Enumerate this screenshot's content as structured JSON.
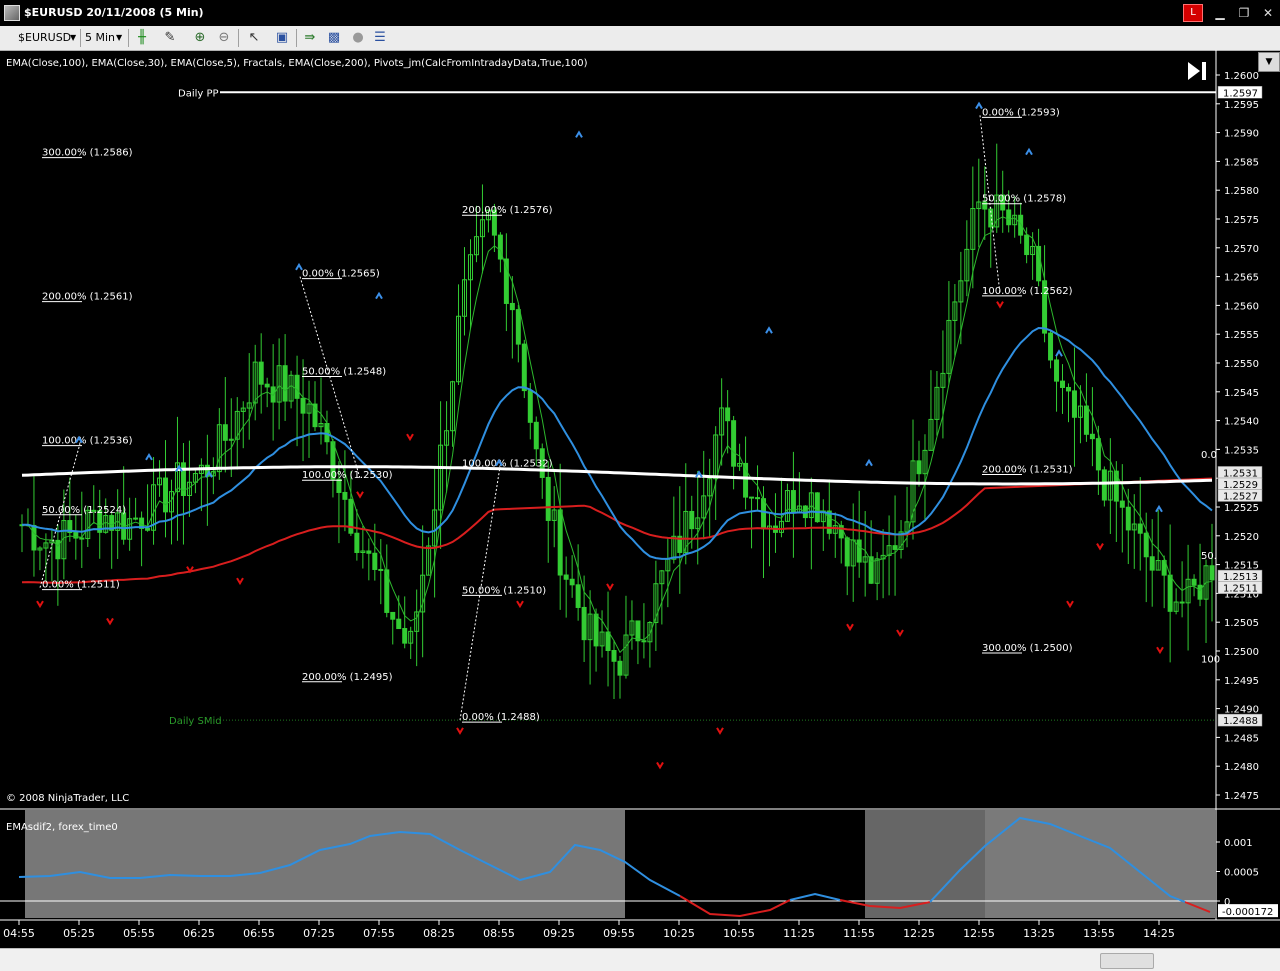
{
  "window": {
    "title": "$EURUSD  20/11/2008 (5 Min)",
    "close_badge": "L"
  },
  "toolbar": {
    "instrument": "$EURUSD",
    "interval": "5 Min"
  },
  "indicators_text": "EMA(Close,100), EMA(Close,30), EMA(Close,5), Fractals, EMA(Close,200), Pivots_jm(CalcFromIntradayData,True,100)",
  "copyright": "© 2008 NinjaTrader, LLC",
  "subpanel_label": "EMAsdif2, forex_time0",
  "price_axis": [
    "1.2600",
    "1.2595",
    "1.2590",
    "1.2585",
    "1.2580",
    "1.2575",
    "1.2570",
    "1.2565",
    "1.2560",
    "1.2555",
    "1.2550",
    "1.2545",
    "1.2540",
    "1.2535",
    "1.2530",
    "1.2525",
    "1.2520",
    "1.2515",
    "1.2510",
    "1.2505",
    "1.2500",
    "1.2495",
    "1.2490",
    "1.2485",
    "1.2480",
    "1.2475"
  ],
  "price_badges": [
    "1.2597",
    "1.2531",
    "1.2529",
    "1.2527",
    "1.2513",
    "1.2511",
    "1.2488"
  ],
  "sub_axis": [
    "0.001",
    "0.0005",
    "0"
  ],
  "sub_badge": "-0.000172",
  "time_axis": [
    "04:55",
    "05:25",
    "05:55",
    "06:25",
    "06:55",
    "07:25",
    "07:55",
    "08:25",
    "08:55",
    "09:25",
    "09:55",
    "10:25",
    "10:55",
    "11:25",
    "11:55",
    "12:25",
    "12:55",
    "13:25",
    "13:55",
    "14:25"
  ],
  "pivot_labels": {
    "pp": "Daily PP",
    "smid": "Daily SMid"
  },
  "fib_labels": [
    "300.00% (1.2586)",
    "200.00% (1.2561)",
    "100.00% (1.2536)",
    "50.00% (1.2524)",
    "0.00% (1.2511)",
    "0.00% (1.2565)",
    "50.00% (1.2548)",
    "100.00% (1.2530)",
    "200.00% (1.2495)",
    "200.00% (1.2576)",
    "100.00% (1.2532)",
    "50.00% (1.2510)",
    "0.00% (1.2488)",
    "0.00% (1.2593)",
    "50.00% (1.2578)",
    "100.00% (1.2562)",
    "200.00% (1.2531)",
    "300.00% (1.2500)"
  ],
  "edge_labels": [
    "0.0",
    "50.",
    "100"
  ],
  "colors": {
    "ema200": "#ffffff",
    "ema100": "#d81e1e",
    "ema30": "#2f8fe0",
    "ema5": "#2db82d",
    "candle": "#33cc33",
    "fractal_up": "#3b8fe8",
    "fractal_down": "#e01010"
  }
}
